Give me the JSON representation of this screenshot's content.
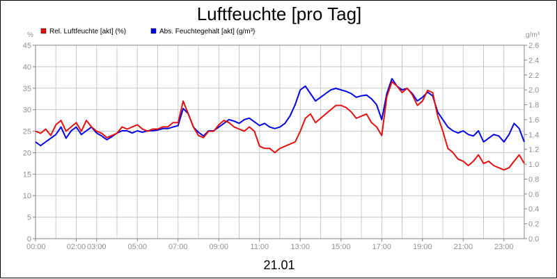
{
  "chart_data": {
    "type": "line",
    "title": "Luftfeuchte [pro Tag]",
    "date_label": "21.01",
    "left_axis": {
      "unit": "%",
      "range": [
        0,
        45
      ],
      "ticks": [
        0,
        5,
        10,
        15,
        20,
        25,
        30,
        35,
        40,
        45
      ]
    },
    "right_axis": {
      "unit": "g/m³",
      "range": [
        0,
        2.6
      ],
      "ticks": [
        "0.0",
        "0.2",
        "0.4",
        "0.6",
        "0.8",
        "1.0",
        "1.2",
        "1.4",
        "1.6",
        "1.8",
        "2.0",
        "2.2",
        "2.4",
        "2.6"
      ]
    },
    "x_axis": {
      "range_hours": [
        0,
        24
      ],
      "ticks": [
        {
          "label": "00:00",
          "hour": 0
        },
        {
          "label": "02:00",
          "hour": 2
        },
        {
          "label": "03:00",
          "hour": 3
        },
        {
          "label": "05:00",
          "hour": 5
        },
        {
          "label": "07:00",
          "hour": 7
        },
        {
          "label": "09:00",
          "hour": 9
        },
        {
          "label": "11:00",
          "hour": 11
        },
        {
          "label": "13:00",
          "hour": 13
        },
        {
          "label": "15:00",
          "hour": 15
        },
        {
          "label": "17:00",
          "hour": 17
        },
        {
          "label": "19:00",
          "hour": 19
        },
        {
          "label": "21:00",
          "hour": 21
        },
        {
          "label": "23:00",
          "hour": 23
        }
      ]
    },
    "grid": true,
    "legend_position": "top-left",
    "series": [
      {
        "name": "Rel. Luftfeuchte [akt] (%)",
        "color": "#e01010",
        "axis": "left",
        "points": [
          [
            0,
            25
          ],
          [
            0.25,
            24.5
          ],
          [
            0.5,
            25.5
          ],
          [
            0.75,
            24
          ],
          [
            1,
            26.5
          ],
          [
            1.25,
            27.5
          ],
          [
            1.5,
            25
          ],
          [
            1.75,
            26
          ],
          [
            2,
            27
          ],
          [
            2.25,
            25
          ],
          [
            2.5,
            27.5
          ],
          [
            2.75,
            26
          ],
          [
            3,
            25
          ],
          [
            3.25,
            24.5
          ],
          [
            3.5,
            23.5
          ],
          [
            3.75,
            24
          ],
          [
            4,
            24.5
          ],
          [
            4.25,
            26
          ],
          [
            4.5,
            25.5
          ],
          [
            4.75,
            26
          ],
          [
            5,
            26.5
          ],
          [
            5.25,
            25.5
          ],
          [
            5.5,
            25
          ],
          [
            5.75,
            25.5
          ],
          [
            6,
            25.5
          ],
          [
            6.25,
            26
          ],
          [
            6.5,
            26
          ],
          [
            6.75,
            27
          ],
          [
            7,
            27
          ],
          [
            7.25,
            32
          ],
          [
            7.5,
            29
          ],
          [
            7.75,
            26
          ],
          [
            8,
            24
          ],
          [
            8.25,
            23.5
          ],
          [
            8.5,
            25
          ],
          [
            8.75,
            25
          ],
          [
            9,
            26.5
          ],
          [
            9.25,
            27.5
          ],
          [
            9.5,
            27
          ],
          [
            9.75,
            26
          ],
          [
            10,
            25.5
          ],
          [
            10.25,
            25
          ],
          [
            10.5,
            26
          ],
          [
            10.75,
            25
          ],
          [
            11,
            21.5
          ],
          [
            11.25,
            21
          ],
          [
            11.5,
            21
          ],
          [
            11.75,
            20
          ],
          [
            12,
            21
          ],
          [
            12.25,
            21.5
          ],
          [
            12.5,
            22
          ],
          [
            12.75,
            22.5
          ],
          [
            13,
            25
          ],
          [
            13.25,
            28
          ],
          [
            13.5,
            29
          ],
          [
            13.75,
            27
          ],
          [
            14,
            28
          ],
          [
            14.25,
            29
          ],
          [
            14.5,
            30
          ],
          [
            14.75,
            31
          ],
          [
            15,
            31
          ],
          [
            15.25,
            30.5
          ],
          [
            15.5,
            29.5
          ],
          [
            15.75,
            28
          ],
          [
            16,
            28.5
          ],
          [
            16.25,
            29
          ],
          [
            16.5,
            27
          ],
          [
            16.75,
            26
          ],
          [
            17,
            24
          ],
          [
            17.25,
            33
          ],
          [
            17.5,
            36.5
          ],
          [
            17.75,
            35.5
          ],
          [
            18,
            34
          ],
          [
            18.25,
            35
          ],
          [
            18.5,
            33.5
          ],
          [
            18.75,
            31
          ],
          [
            19,
            32
          ],
          [
            19.25,
            34.5
          ],
          [
            19.5,
            34
          ],
          [
            19.75,
            28.5
          ],
          [
            20,
            25
          ],
          [
            20.25,
            21
          ],
          [
            20.5,
            20
          ],
          [
            20.75,
            18.5
          ],
          [
            21,
            18
          ],
          [
            21.25,
            17
          ],
          [
            21.5,
            18
          ],
          [
            21.75,
            19.5
          ],
          [
            22,
            17.5
          ],
          [
            22.25,
            18
          ],
          [
            22.5,
            17
          ],
          [
            22.75,
            16.5
          ],
          [
            23,
            16
          ],
          [
            23.25,
            16.5
          ],
          [
            23.5,
            18
          ],
          [
            23.75,
            19.5
          ],
          [
            24,
            17.5
          ]
        ]
      },
      {
        "name": "Abs. Feuchtegehalt [akt] (g/m³)",
        "color": "#0000e0",
        "axis": "right",
        "points": [
          [
            0,
            1.3
          ],
          [
            0.25,
            1.25
          ],
          [
            0.5,
            1.3
          ],
          [
            0.75,
            1.35
          ],
          [
            1,
            1.4
          ],
          [
            1.25,
            1.5
          ],
          [
            1.5,
            1.35
          ],
          [
            1.75,
            1.45
          ],
          [
            2,
            1.5
          ],
          [
            2.25,
            1.4
          ],
          [
            2.5,
            1.45
          ],
          [
            2.75,
            1.5
          ],
          [
            3,
            1.42
          ],
          [
            3.25,
            1.38
          ],
          [
            3.5,
            1.33
          ],
          [
            3.75,
            1.37
          ],
          [
            4,
            1.42
          ],
          [
            4.25,
            1.45
          ],
          [
            4.5,
            1.45
          ],
          [
            4.75,
            1.42
          ],
          [
            5,
            1.45
          ],
          [
            5.25,
            1.43
          ],
          [
            5.5,
            1.45
          ],
          [
            5.75,
            1.45
          ],
          [
            6,
            1.46
          ],
          [
            6.25,
            1.48
          ],
          [
            6.5,
            1.48
          ],
          [
            6.75,
            1.5
          ],
          [
            7,
            1.52
          ],
          [
            7.25,
            1.75
          ],
          [
            7.5,
            1.68
          ],
          [
            7.75,
            1.5
          ],
          [
            8,
            1.43
          ],
          [
            8.25,
            1.38
          ],
          [
            8.5,
            1.45
          ],
          [
            8.75,
            1.45
          ],
          [
            9,
            1.5
          ],
          [
            9.25,
            1.55
          ],
          [
            9.5,
            1.6
          ],
          [
            9.75,
            1.58
          ],
          [
            10,
            1.55
          ],
          [
            10.25,
            1.6
          ],
          [
            10.5,
            1.62
          ],
          [
            10.75,
            1.57
          ],
          [
            11,
            1.52
          ],
          [
            11.25,
            1.55
          ],
          [
            11.5,
            1.5
          ],
          [
            11.75,
            1.48
          ],
          [
            12,
            1.5
          ],
          [
            12.25,
            1.55
          ],
          [
            12.5,
            1.65
          ],
          [
            12.75,
            1.8
          ],
          [
            13,
            2.0
          ],
          [
            13.25,
            2.05
          ],
          [
            13.5,
            1.95
          ],
          [
            13.75,
            1.85
          ],
          [
            14,
            1.9
          ],
          [
            14.25,
            1.95
          ],
          [
            14.5,
            2.0
          ],
          [
            14.75,
            2.02
          ],
          [
            15,
            2.0
          ],
          [
            15.25,
            1.98
          ],
          [
            15.5,
            1.95
          ],
          [
            15.75,
            1.9
          ],
          [
            16,
            1.92
          ],
          [
            16.25,
            1.93
          ],
          [
            16.5,
            1.88
          ],
          [
            16.75,
            1.8
          ],
          [
            17,
            1.6
          ],
          [
            17.25,
            1.95
          ],
          [
            17.5,
            2.15
          ],
          [
            17.75,
            2.05
          ],
          [
            18,
            2.0
          ],
          [
            18.25,
            2.02
          ],
          [
            18.5,
            1.95
          ],
          [
            18.75,
            1.85
          ],
          [
            19,
            1.9
          ],
          [
            19.25,
            1.97
          ],
          [
            19.5,
            1.92
          ],
          [
            19.75,
            1.7
          ],
          [
            20,
            1.6
          ],
          [
            20.25,
            1.5
          ],
          [
            20.5,
            1.45
          ],
          [
            20.75,
            1.42
          ],
          [
            21,
            1.45
          ],
          [
            21.25,
            1.4
          ],
          [
            21.5,
            1.38
          ],
          [
            21.75,
            1.45
          ],
          [
            22,
            1.3
          ],
          [
            22.25,
            1.35
          ],
          [
            22.5,
            1.4
          ],
          [
            22.75,
            1.38
          ],
          [
            23,
            1.3
          ],
          [
            23.25,
            1.4
          ],
          [
            23.5,
            1.55
          ],
          [
            23.75,
            1.48
          ],
          [
            24,
            1.3
          ]
        ]
      }
    ]
  }
}
